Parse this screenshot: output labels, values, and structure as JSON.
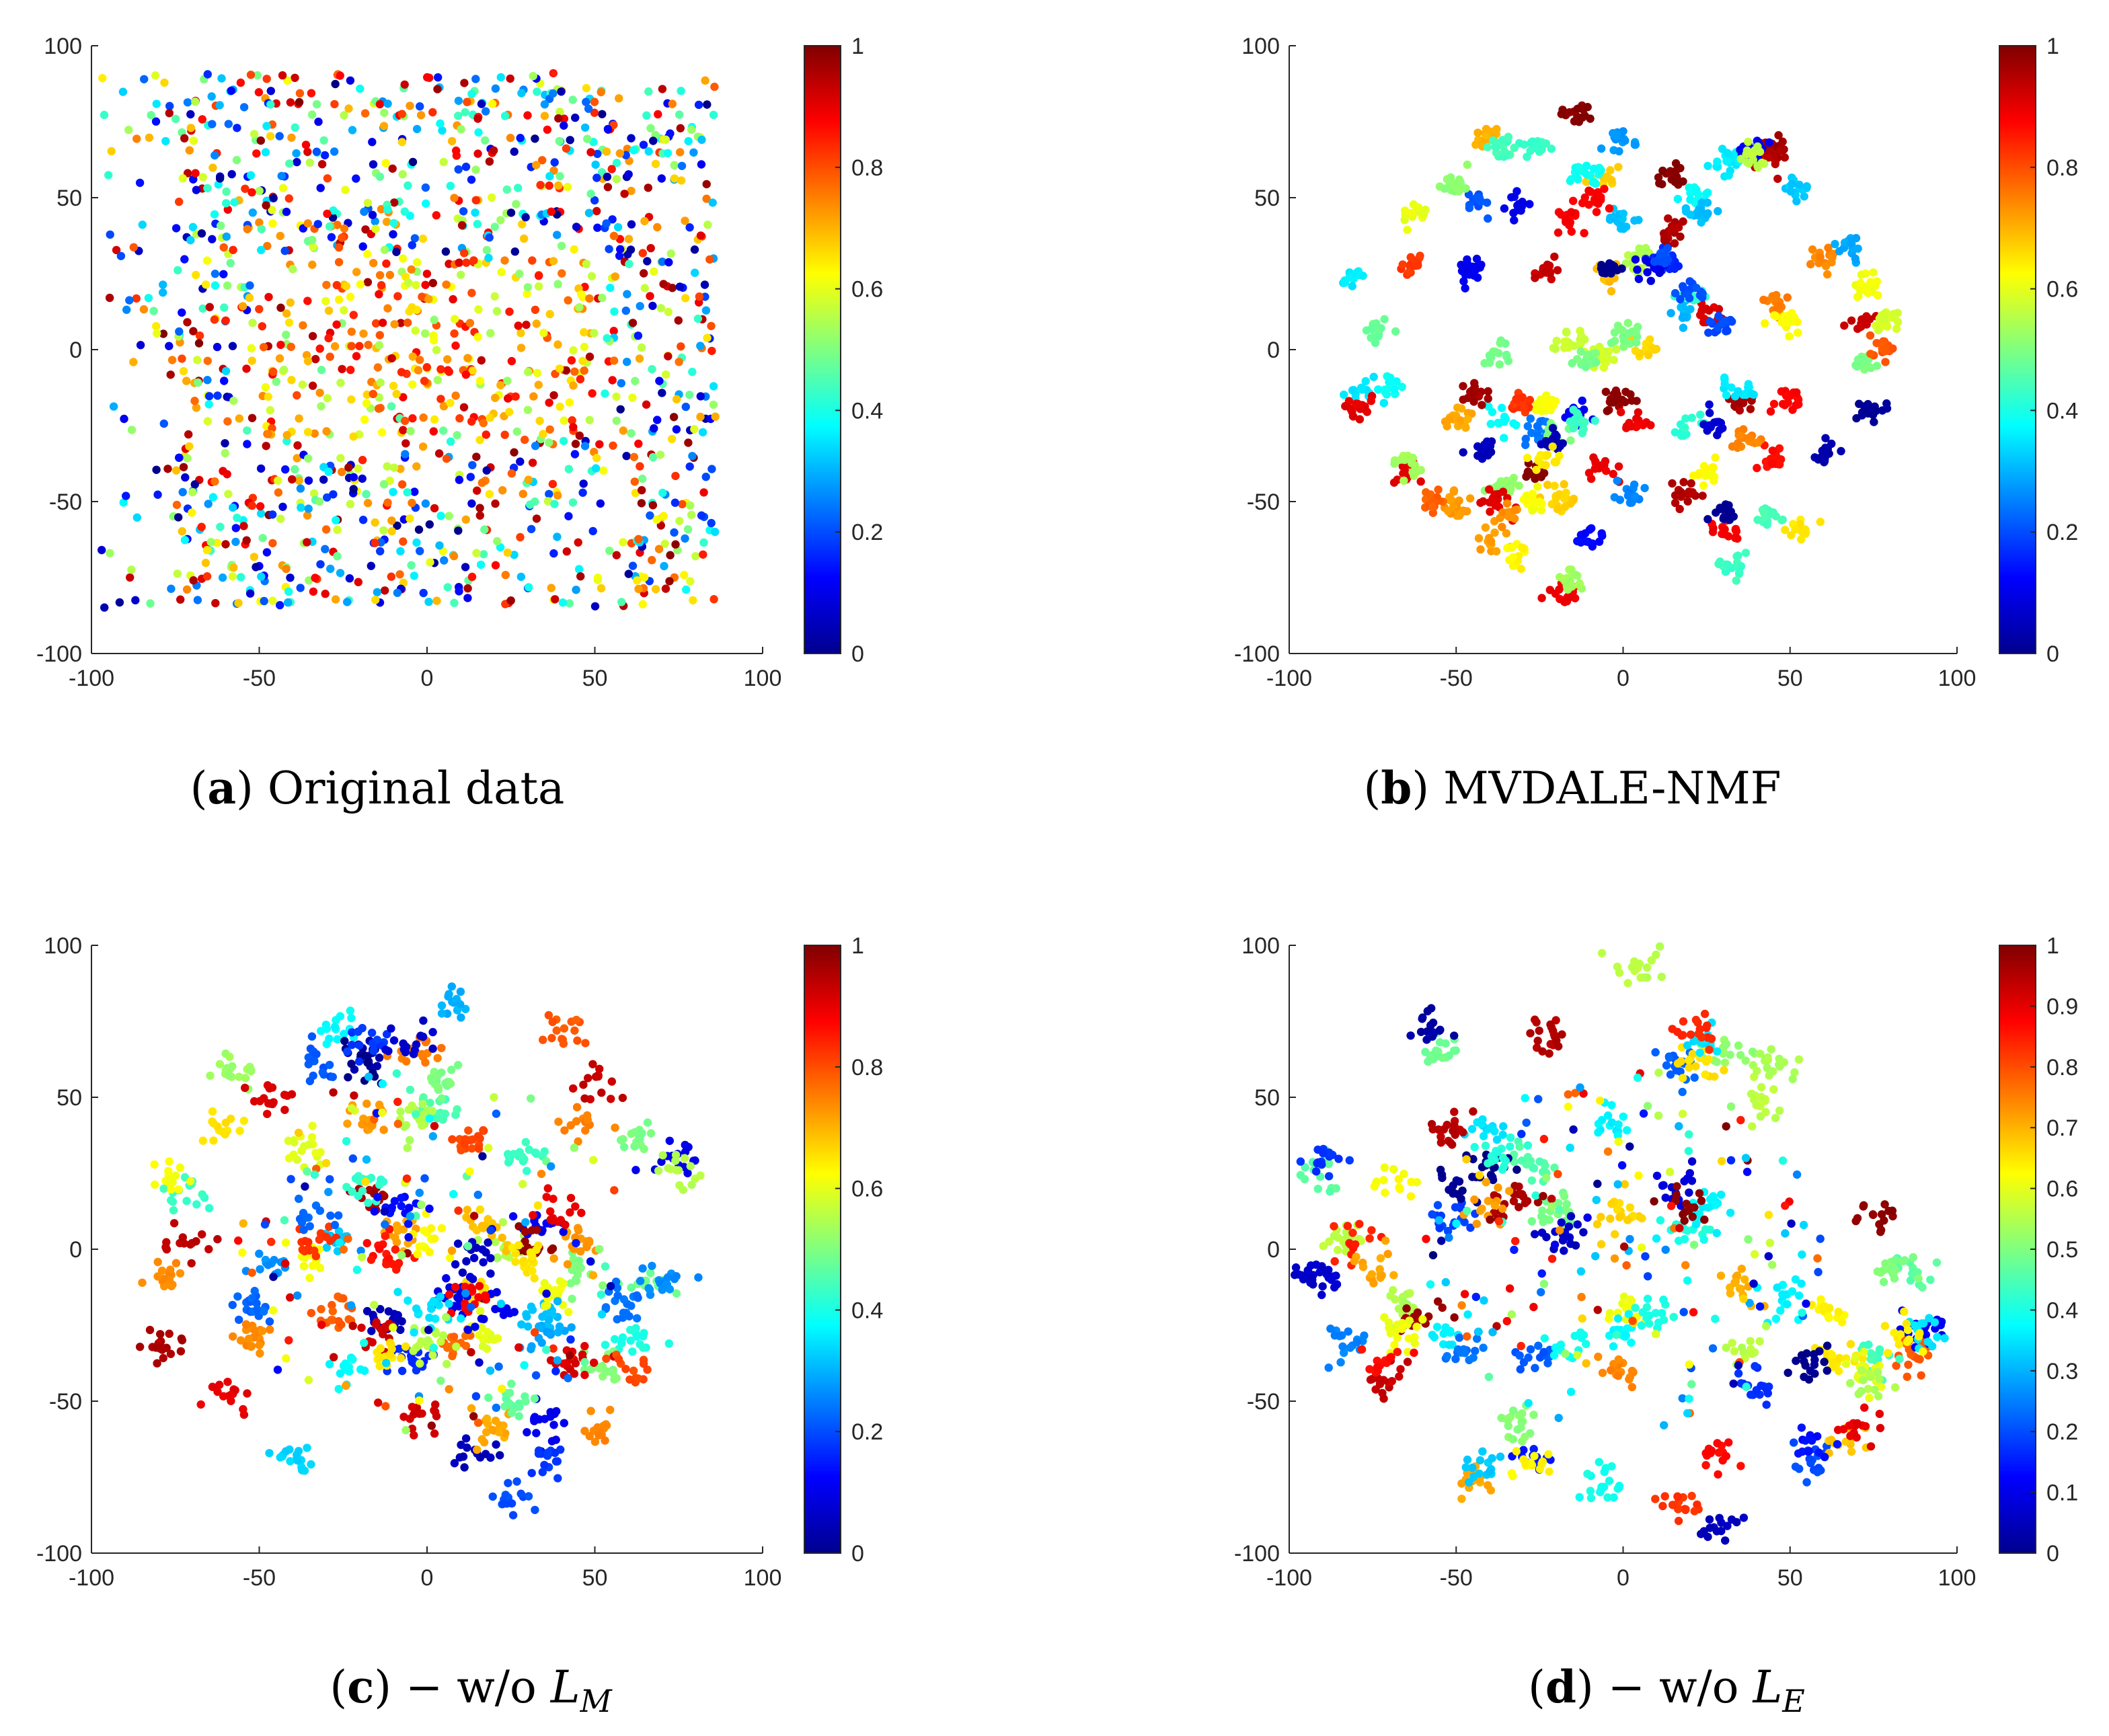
{
  "figure": {
    "panels": [
      {
        "caption": {
          "letter": "a",
          "text": "Original data",
          "symbol": "",
          "subscript": ""
        },
        "chart_data": {
          "type": "scatter",
          "title": "",
          "xlabel": "",
          "ylabel": "",
          "xlim": [
            -100,
            100
          ],
          "ylim": [
            -100,
            100
          ],
          "xticks": [
            "-100",
            "-50",
            "0",
            "50",
            "100"
          ],
          "yticks": [
            "-100",
            "-50",
            "0",
            "50",
            "100"
          ],
          "colorbar": {
            "range": [
              0,
              1
            ],
            "colormap": "jet",
            "ticks": [
              "0",
              "0.2",
              "0.4",
              "0.6",
              "0.8",
              "1"
            ]
          },
          "series": [
            {
              "name": "original",
              "seed": 11,
              "pattern": "bands",
              "count": 1500,
              "xrange": [
                -97,
                86
              ],
              "yrange": [
                -83,
                92
              ]
            }
          ]
        }
      },
      {
        "caption": {
          "letter": "b",
          "text": "MVDALE-NMF",
          "symbol": "",
          "subscript": ""
        },
        "chart_data": {
          "type": "scatter",
          "title": "",
          "xlabel": "",
          "ylabel": "",
          "xlim": [
            -100,
            100
          ],
          "ylim": [
            -100,
            100
          ],
          "xticks": [
            "-100",
            "-50",
            "0",
            "50",
            "100"
          ],
          "yticks": [
            "-100",
            "-50",
            "0",
            "50",
            "100"
          ],
          "colorbar": {
            "range": [
              0,
              1
            ],
            "colormap": "jet",
            "ticks": [
              "0",
              "0.2",
              "0.4",
              "0.6",
              "0.8",
              "1"
            ]
          },
          "series": [
            {
              "name": "mvdale-nmf",
              "seed": 23,
              "pattern": "clusters",
              "clusters": 105,
              "per_cluster": 14,
              "spread": 2.2,
              "stray": 0,
              "radius": [
                75,
                88
              ]
            }
          ]
        }
      },
      {
        "caption": {
          "letter": "c",
          "text": "",
          "symbol": "L",
          "subscript": "M"
        },
        "chart_data": {
          "type": "scatter",
          "title": "",
          "xlabel": "",
          "ylabel": "",
          "xlim": [
            -100,
            100
          ],
          "ylim": [
            -100,
            100
          ],
          "xticks": [
            "-100",
            "-50",
            "0",
            "50",
            "100"
          ],
          "yticks": [
            "-100",
            "-50",
            "0",
            "50",
            "100"
          ],
          "colorbar": {
            "range": [
              0,
              1
            ],
            "colormap": "jet",
            "ticks": [
              "0",
              "0.2",
              "0.4",
              "0.6",
              "0.8",
              "1"
            ]
          },
          "series": [
            {
              "name": "without-LM",
              "seed": 37,
              "pattern": "clusters",
              "clusters": 85,
              "per_cluster": 14,
              "spread": 3.4,
              "stray": 150,
              "radius": [
                78,
                90
              ]
            }
          ]
        }
      },
      {
        "caption": {
          "letter": "d",
          "text": "",
          "symbol": "L",
          "subscript": "E"
        },
        "chart_data": {
          "type": "scatter",
          "title": "",
          "xlabel": "",
          "ylabel": "",
          "xlim": [
            -100,
            100
          ],
          "ylim": [
            -100,
            100
          ],
          "xticks": [
            "-100",
            "-50",
            "0",
            "50",
            "100"
          ],
          "yticks": [
            "-100",
            "-50",
            "0",
            "50",
            "100"
          ],
          "colorbar": {
            "range": [
              0,
              1
            ],
            "colormap": "jet",
            "ticks": [
              "0",
              "0.1",
              "0.2",
              "0.3",
              "0.4",
              "0.5",
              "0.6",
              "0.7",
              "0.8",
              "0.9",
              "1"
            ]
          },
          "series": [
            {
              "name": "without-LE",
              "seed": 51,
              "pattern": "clusters",
              "clusters": 80,
              "per_cluster": 14,
              "spread": 3.4,
              "stray": 160,
              "radius": [
                92,
                100
              ]
            }
          ]
        }
      }
    ],
    "caption_prefix": "− w/o "
  }
}
